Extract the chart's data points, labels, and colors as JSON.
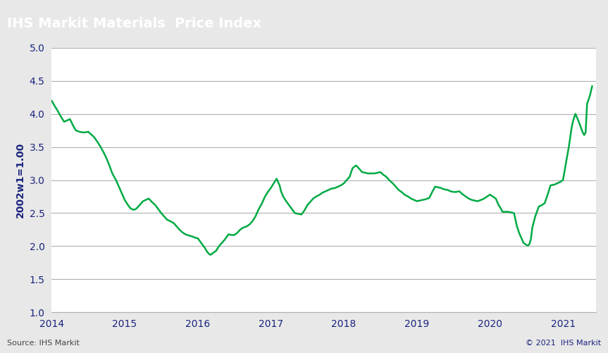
{
  "title": "IHS Markit Materials  Price Index",
  "ylabel": "2002w1=1.00",
  "source_left": "Source: IHS Markit",
  "source_right": "© 2021  IHS Markit",
  "title_bg_color": "#808080",
  "title_text_color": "#ffffff",
  "line_color": "#00aa44",
  "bg_color": "#e8e8e8",
  "plot_bg_color": "#ffffff",
  "grid_color": "#b0b0b0",
  "tick_label_color": "#1a237e",
  "ylabel_color": "#1a237e",
  "ylim": [
    1.0,
    5.0
  ],
  "yticks": [
    1.0,
    1.5,
    2.0,
    2.5,
    3.0,
    3.5,
    4.0,
    4.5,
    5.0
  ],
  "x_labels": [
    "2014",
    "2015",
    "2016",
    "2017",
    "2018",
    "2019",
    "2020",
    "2021"
  ],
  "data": [
    [
      2014.0,
      4.2
    ],
    [
      2014.04,
      4.12
    ],
    [
      2014.08,
      4.05
    ],
    [
      2014.12,
      3.97
    ],
    [
      2014.17,
      3.88
    ],
    [
      2014.21,
      3.9
    ],
    [
      2014.25,
      3.92
    ],
    [
      2014.29,
      3.83
    ],
    [
      2014.33,
      3.75
    ],
    [
      2014.38,
      3.73
    ],
    [
      2014.42,
      3.72
    ],
    [
      2014.46,
      3.72
    ],
    [
      2014.5,
      3.73
    ],
    [
      2014.54,
      3.69
    ],
    [
      2014.58,
      3.65
    ],
    [
      2014.63,
      3.57
    ],
    [
      2014.67,
      3.5
    ],
    [
      2014.71,
      3.42
    ],
    [
      2014.75,
      3.33
    ],
    [
      2014.79,
      3.22
    ],
    [
      2014.83,
      3.1
    ],
    [
      2014.88,
      3.0
    ],
    [
      2014.92,
      2.9
    ],
    [
      2014.96,
      2.8
    ],
    [
      2015.0,
      2.7
    ],
    [
      2015.04,
      2.63
    ],
    [
      2015.08,
      2.57
    ],
    [
      2015.12,
      2.55
    ],
    [
      2015.15,
      2.56
    ],
    [
      2015.17,
      2.58
    ],
    [
      2015.21,
      2.63
    ],
    [
      2015.25,
      2.68
    ],
    [
      2015.29,
      2.7
    ],
    [
      2015.33,
      2.72
    ],
    [
      2015.37,
      2.67
    ],
    [
      2015.42,
      2.62
    ],
    [
      2015.46,
      2.56
    ],
    [
      2015.5,
      2.5
    ],
    [
      2015.54,
      2.45
    ],
    [
      2015.58,
      2.4
    ],
    [
      2015.62,
      2.38
    ],
    [
      2015.67,
      2.35
    ],
    [
      2015.71,
      2.3
    ],
    [
      2015.75,
      2.25
    ],
    [
      2015.79,
      2.21
    ],
    [
      2015.83,
      2.18
    ],
    [
      2015.88,
      2.16
    ],
    [
      2015.92,
      2.15
    ],
    [
      2015.96,
      2.13
    ],
    [
      2016.0,
      2.12
    ],
    [
      2016.04,
      2.06
    ],
    [
      2016.08,
      2.0
    ],
    [
      2016.1,
      1.97
    ],
    [
      2016.12,
      1.93
    ],
    [
      2016.14,
      1.9
    ],
    [
      2016.17,
      1.87
    ],
    [
      2016.19,
      1.88
    ],
    [
      2016.21,
      1.9
    ],
    [
      2016.25,
      1.93
    ],
    [
      2016.29,
      2.0
    ],
    [
      2016.33,
      2.05
    ],
    [
      2016.37,
      2.1
    ],
    [
      2016.42,
      2.18
    ],
    [
      2016.46,
      2.17
    ],
    [
      2016.5,
      2.17
    ],
    [
      2016.54,
      2.2
    ],
    [
      2016.58,
      2.25
    ],
    [
      2016.62,
      2.28
    ],
    [
      2016.67,
      2.3
    ],
    [
      2016.71,
      2.33
    ],
    [
      2016.75,
      2.38
    ],
    [
      2016.79,
      2.45
    ],
    [
      2016.83,
      2.55
    ],
    [
      2016.88,
      2.65
    ],
    [
      2016.92,
      2.75
    ],
    [
      2016.96,
      2.82
    ],
    [
      2017.0,
      2.88
    ],
    [
      2017.04,
      2.95
    ],
    [
      2017.08,
      3.02
    ],
    [
      2017.1,
      2.97
    ],
    [
      2017.12,
      2.92
    ],
    [
      2017.14,
      2.83
    ],
    [
      2017.17,
      2.75
    ],
    [
      2017.21,
      2.68
    ],
    [
      2017.25,
      2.62
    ],
    [
      2017.29,
      2.56
    ],
    [
      2017.33,
      2.5
    ],
    [
      2017.37,
      2.49
    ],
    [
      2017.42,
      2.48
    ],
    [
      2017.46,
      2.54
    ],
    [
      2017.5,
      2.62
    ],
    [
      2017.54,
      2.67
    ],
    [
      2017.58,
      2.72
    ],
    [
      2017.62,
      2.75
    ],
    [
      2017.67,
      2.78
    ],
    [
      2017.71,
      2.81
    ],
    [
      2017.75,
      2.83
    ],
    [
      2017.79,
      2.85
    ],
    [
      2017.83,
      2.87
    ],
    [
      2017.88,
      2.88
    ],
    [
      2017.92,
      2.9
    ],
    [
      2017.96,
      2.92
    ],
    [
      2018.0,
      2.95
    ],
    [
      2018.04,
      3.0
    ],
    [
      2018.08,
      3.05
    ],
    [
      2018.1,
      3.12
    ],
    [
      2018.12,
      3.18
    ],
    [
      2018.14,
      3.2
    ],
    [
      2018.17,
      3.22
    ],
    [
      2018.21,
      3.17
    ],
    [
      2018.25,
      3.12
    ],
    [
      2018.29,
      3.11
    ],
    [
      2018.33,
      3.1
    ],
    [
      2018.37,
      3.1
    ],
    [
      2018.42,
      3.1
    ],
    [
      2018.46,
      3.11
    ],
    [
      2018.5,
      3.12
    ],
    [
      2018.54,
      3.08
    ],
    [
      2018.58,
      3.05
    ],
    [
      2018.62,
      3.0
    ],
    [
      2018.67,
      2.95
    ],
    [
      2018.71,
      2.9
    ],
    [
      2018.75,
      2.85
    ],
    [
      2018.79,
      2.82
    ],
    [
      2018.83,
      2.78
    ],
    [
      2018.88,
      2.75
    ],
    [
      2018.92,
      2.72
    ],
    [
      2018.96,
      2.7
    ],
    [
      2019.0,
      2.68
    ],
    [
      2019.04,
      2.69
    ],
    [
      2019.08,
      2.7
    ],
    [
      2019.12,
      2.71
    ],
    [
      2019.17,
      2.73
    ],
    [
      2019.21,
      2.82
    ],
    [
      2019.25,
      2.9
    ],
    [
      2019.29,
      2.89
    ],
    [
      2019.33,
      2.88
    ],
    [
      2019.37,
      2.86
    ],
    [
      2019.42,
      2.85
    ],
    [
      2019.46,
      2.83
    ],
    [
      2019.5,
      2.82
    ],
    [
      2019.54,
      2.82
    ],
    [
      2019.58,
      2.83
    ],
    [
      2019.62,
      2.79
    ],
    [
      2019.67,
      2.75
    ],
    [
      2019.71,
      2.72
    ],
    [
      2019.75,
      2.7
    ],
    [
      2019.79,
      2.69
    ],
    [
      2019.83,
      2.68
    ],
    [
      2019.88,
      2.7
    ],
    [
      2019.92,
      2.72
    ],
    [
      2019.96,
      2.75
    ],
    [
      2020.0,
      2.78
    ],
    [
      2020.04,
      2.75
    ],
    [
      2020.08,
      2.72
    ],
    [
      2020.1,
      2.67
    ],
    [
      2020.12,
      2.62
    ],
    [
      2020.15,
      2.57
    ],
    [
      2020.17,
      2.52
    ],
    [
      2020.21,
      2.52
    ],
    [
      2020.25,
      2.52
    ],
    [
      2020.29,
      2.51
    ],
    [
      2020.33,
      2.5
    ],
    [
      2020.35,
      2.4
    ],
    [
      2020.37,
      2.3
    ],
    [
      2020.4,
      2.2
    ],
    [
      2020.42,
      2.15
    ],
    [
      2020.44,
      2.1
    ],
    [
      2020.46,
      2.05
    ],
    [
      2020.5,
      2.02
    ],
    [
      2020.52,
      2.01
    ],
    [
      2020.54,
      2.03
    ],
    [
      2020.56,
      2.1
    ],
    [
      2020.58,
      2.28
    ],
    [
      2020.62,
      2.45
    ],
    [
      2020.67,
      2.6
    ],
    [
      2020.71,
      2.62
    ],
    [
      2020.75,
      2.65
    ],
    [
      2020.79,
      2.78
    ],
    [
      2020.83,
      2.92
    ],
    [
      2020.88,
      2.93
    ],
    [
      2020.92,
      2.95
    ],
    [
      2020.96,
      2.97
    ],
    [
      2021.0,
      3.0
    ],
    [
      2021.04,
      3.25
    ],
    [
      2021.08,
      3.5
    ],
    [
      2021.1,
      3.65
    ],
    [
      2021.12,
      3.8
    ],
    [
      2021.14,
      3.9
    ],
    [
      2021.17,
      4.0
    ],
    [
      2021.21,
      3.9
    ],
    [
      2021.25,
      3.78
    ],
    [
      2021.27,
      3.72
    ],
    [
      2021.29,
      3.68
    ],
    [
      2021.31,
      3.72
    ],
    [
      2021.33,
      4.15
    ],
    [
      2021.37,
      4.28
    ],
    [
      2021.4,
      4.42
    ]
  ]
}
